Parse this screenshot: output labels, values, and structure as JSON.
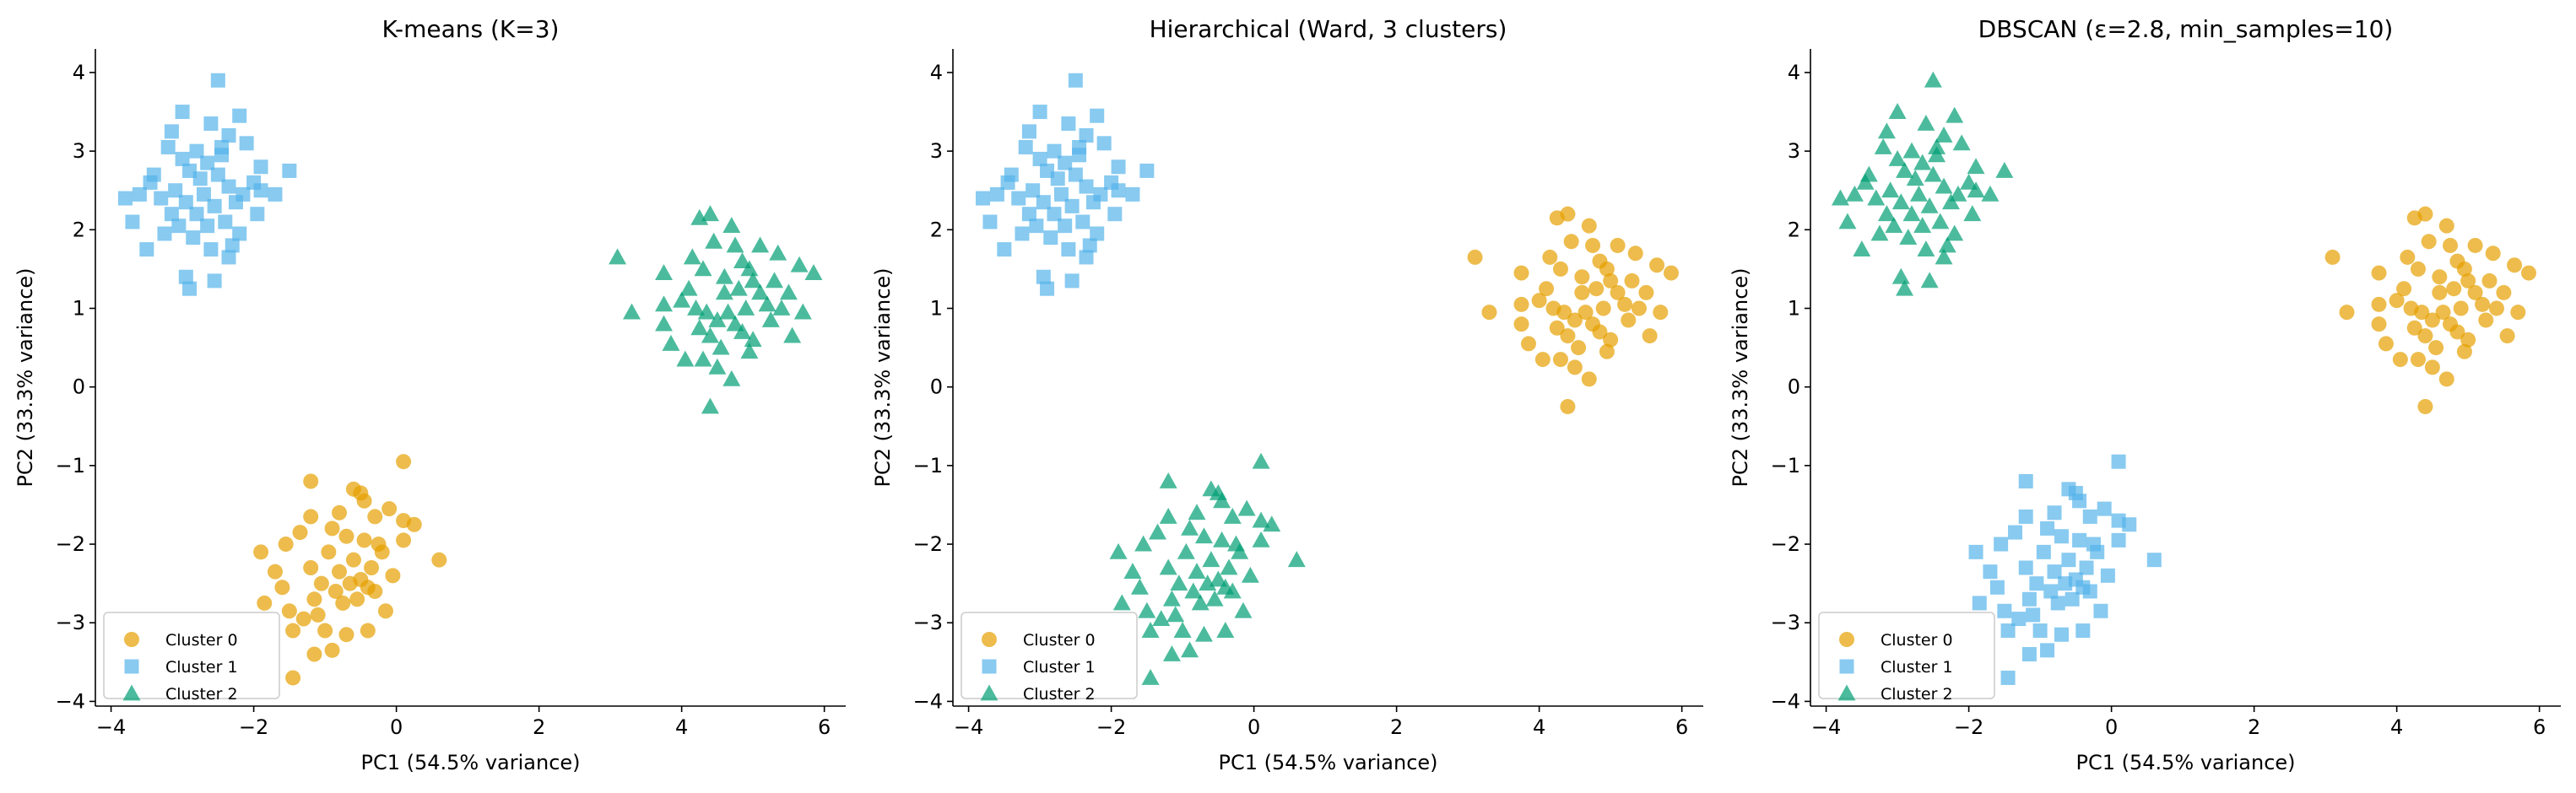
{
  "colors": {
    "cluster_0": "#E69F00",
    "cluster_1": "#56B4E9",
    "cluster_2": "#009E73"
  },
  "point_groups": {
    "A": [
      [
        -2.5,
        3.9
      ],
      [
        -1.5,
        2.75
      ],
      [
        -1.7,
        2.45
      ],
      [
        -3.8,
        2.4
      ],
      [
        -3.7,
        2.1
      ],
      [
        -3.5,
        1.75
      ],
      [
        -2.9,
        1.25
      ],
      [
        -2.55,
        1.35
      ],
      [
        -2.95,
        1.4
      ],
      [
        -3.0,
        3.5
      ],
      [
        -2.6,
        3.35
      ],
      [
        -2.2,
        3.45
      ],
      [
        -3.15,
        3.25
      ],
      [
        -2.35,
        3.2
      ],
      [
        -3.4,
        2.7
      ],
      [
        -3.2,
        3.05
      ],
      [
        -2.8,
        3.0
      ],
      [
        -2.65,
        2.85
      ],
      [
        -2.45,
        3.05
      ],
      [
        -2.1,
        3.1
      ],
      [
        -1.9,
        2.8
      ],
      [
        -3.3,
        2.4
      ],
      [
        -3.1,
        2.5
      ],
      [
        -2.95,
        2.35
      ],
      [
        -2.8,
        2.2
      ],
      [
        -2.7,
        2.45
      ],
      [
        -2.55,
        2.3
      ],
      [
        -2.4,
        2.1
      ],
      [
        -2.25,
        2.35
      ],
      [
        -2.15,
        2.45
      ],
      [
        -1.9,
        2.5
      ],
      [
        -1.95,
        2.2
      ],
      [
        -2.0,
        2.6
      ],
      [
        -3.05,
        2.05
      ],
      [
        -3.25,
        1.95
      ],
      [
        -2.85,
        1.9
      ],
      [
        -2.6,
        1.75
      ],
      [
        -2.3,
        1.8
      ],
      [
        -2.35,
        1.65
      ],
      [
        -3.45,
        2.6
      ],
      [
        -3.6,
        2.45
      ],
      [
        -2.75,
        2.65
      ],
      [
        -2.5,
        2.7
      ],
      [
        -2.9,
        2.75
      ],
      [
        -3.0,
        2.9
      ],
      [
        -2.35,
        2.55
      ],
      [
        -2.65,
        2.05
      ],
      [
        -2.2,
        1.95
      ],
      [
        -3.15,
        2.2
      ],
      [
        -2.45,
        2.95
      ]
    ],
    "B": [
      [
        3.1,
        1.65
      ],
      [
        3.3,
        0.95
      ],
      [
        4.4,
        -0.25
      ],
      [
        5.85,
        1.45
      ],
      [
        5.65,
        1.55
      ],
      [
        4.4,
        2.2
      ],
      [
        4.25,
        2.15
      ],
      [
        3.75,
        1.45
      ],
      [
        3.75,
        1.05
      ],
      [
        3.75,
        0.8
      ],
      [
        3.85,
        0.55
      ],
      [
        4.05,
        0.35
      ],
      [
        4.3,
        0.35
      ],
      [
        4.5,
        0.25
      ],
      [
        4.7,
        0.1
      ],
      [
        4.95,
        0.45
      ],
      [
        5.0,
        0.6
      ],
      [
        5.55,
        0.65
      ],
      [
        5.7,
        0.95
      ],
      [
        5.5,
        1.2
      ],
      [
        5.3,
        1.35
      ],
      [
        5.35,
        1.7
      ],
      [
        5.1,
        1.8
      ],
      [
        4.95,
        1.5
      ],
      [
        4.7,
        2.05
      ],
      [
        4.75,
        1.8
      ],
      [
        4.45,
        1.85
      ],
      [
        4.15,
        1.65
      ],
      [
        4.3,
        1.5
      ],
      [
        4.1,
        1.25
      ],
      [
        4.2,
        1.0
      ],
      [
        4.0,
        1.1
      ],
      [
        4.35,
        0.95
      ],
      [
        4.5,
        0.85
      ],
      [
        4.6,
        1.2
      ],
      [
        4.8,
        1.25
      ],
      [
        4.65,
        0.95
      ],
      [
        4.9,
        1.0
      ],
      [
        4.85,
        0.7
      ],
      [
        5.1,
        1.2
      ],
      [
        5.2,
        1.05
      ],
      [
        5.25,
        0.85
      ],
      [
        4.4,
        0.65
      ],
      [
        4.55,
        0.5
      ],
      [
        4.75,
        0.8
      ],
      [
        4.6,
        1.4
      ],
      [
        5.0,
        1.35
      ],
      [
        4.25,
        0.75
      ],
      [
        5.4,
        1.0
      ],
      [
        4.85,
        1.6
      ]
    ],
    "C": [
      [
        0.1,
        -0.95
      ],
      [
        0.6,
        -2.2
      ],
      [
        -1.2,
        -1.2
      ],
      [
        -1.45,
        -3.7
      ],
      [
        -1.9,
        -2.1
      ],
      [
        -1.85,
        -2.75
      ],
      [
        -1.15,
        -3.4
      ],
      [
        -0.9,
        -3.35
      ],
      [
        -0.6,
        -1.3
      ],
      [
        -0.5,
        -1.35
      ],
      [
        -0.45,
        -1.45
      ],
      [
        -0.1,
        -1.55
      ],
      [
        0.25,
        -1.75
      ],
      [
        0.1,
        -1.7
      ],
      [
        0.1,
        -1.95
      ],
      [
        -0.3,
        -1.65
      ],
      [
        -0.8,
        -1.6
      ],
      [
        -1.2,
        -1.65
      ],
      [
        -1.35,
        -1.85
      ],
      [
        -1.55,
        -2.0
      ],
      [
        -1.7,
        -2.35
      ],
      [
        -1.6,
        -2.55
      ],
      [
        -1.5,
        -2.85
      ],
      [
        -1.45,
        -3.1
      ],
      [
        -1.3,
        -2.95
      ],
      [
        -1.1,
        -2.9
      ],
      [
        -1.0,
        -3.1
      ],
      [
        -0.7,
        -3.15
      ],
      [
        -0.4,
        -3.1
      ],
      [
        -0.15,
        -2.85
      ],
      [
        -0.05,
        -2.4
      ],
      [
        -0.2,
        -2.1
      ],
      [
        -0.35,
        -2.3
      ],
      [
        -0.5,
        -2.45
      ],
      [
        -0.65,
        -2.5
      ],
      [
        -0.8,
        -2.35
      ],
      [
        -0.95,
        -2.1
      ],
      [
        -1.05,
        -2.5
      ],
      [
        -1.2,
        -2.3
      ],
      [
        -0.75,
        -2.75
      ],
      [
        -0.55,
        -2.7
      ],
      [
        -0.3,
        -2.6
      ],
      [
        -0.45,
        -1.95
      ],
      [
        -0.7,
        -1.9
      ],
      [
        -0.9,
        -1.8
      ],
      [
        -1.15,
        -2.7
      ],
      [
        -0.6,
        -2.2
      ],
      [
        -0.4,
        -2.55
      ],
      [
        -0.85,
        -2.6
      ],
      [
        -0.25,
        -2.0
      ]
    ]
  },
  "chart_data": [
    {
      "type": "scatter",
      "title": "K-means (K=3)",
      "xlabel": "PC1 (54.5% variance)",
      "ylabel": "PC2 (33.3% variance)",
      "xlim": [
        -4.22,
        6.3
      ],
      "ylim": [
        -4.06,
        4.3
      ],
      "xticks": [
        -4,
        -2,
        0,
        2,
        4,
        6
      ],
      "xtick_labels": [
        "−4",
        "−2",
        "0",
        "2",
        "4",
        "6"
      ],
      "yticks": [
        -4,
        -3,
        -2,
        -1,
        0,
        1,
        2,
        3,
        4
      ],
      "ytick_labels": [
        "−4",
        "−3",
        "−2",
        "−1",
        "0",
        "1",
        "2",
        "3",
        "4"
      ],
      "grid": false,
      "legend": "lower-left",
      "series": [
        {
          "name": "Cluster 0",
          "marker": "circle",
          "group": "C"
        },
        {
          "name": "Cluster 1",
          "marker": "square",
          "group": "A"
        },
        {
          "name": "Cluster 2",
          "marker": "triangle",
          "group": "B"
        }
      ]
    },
    {
      "type": "scatter",
      "title": "Hierarchical (Ward, 3 clusters)",
      "xlabel": "PC1 (54.5% variance)",
      "ylabel": "PC2 (33.3% variance)",
      "xlim": [
        -4.22,
        6.3
      ],
      "ylim": [
        -4.06,
        4.3
      ],
      "xticks": [
        -4,
        -2,
        0,
        2,
        4,
        6
      ],
      "xtick_labels": [
        "−4",
        "−2",
        "0",
        "2",
        "4",
        "6"
      ],
      "yticks": [
        -4,
        -3,
        -2,
        -1,
        0,
        1,
        2,
        3,
        4
      ],
      "ytick_labels": [
        "−4",
        "−3",
        "−2",
        "−1",
        "0",
        "1",
        "2",
        "3",
        "4"
      ],
      "grid": false,
      "legend": "lower-left",
      "series": [
        {
          "name": "Cluster 0",
          "marker": "circle",
          "group": "B"
        },
        {
          "name": "Cluster 1",
          "marker": "square",
          "group": "A"
        },
        {
          "name": "Cluster 2",
          "marker": "triangle",
          "group": "C"
        }
      ]
    },
    {
      "type": "scatter",
      "title": "DBSCAN (ε=2.8, min_samples=10)",
      "xlabel": "PC1 (54.5% variance)",
      "ylabel": "PC2 (33.3% variance)",
      "xlim": [
        -4.22,
        6.3
      ],
      "ylim": [
        -4.06,
        4.3
      ],
      "xticks": [
        -4,
        -2,
        0,
        2,
        4,
        6
      ],
      "xtick_labels": [
        "−4",
        "−2",
        "0",
        "2",
        "4",
        "6"
      ],
      "yticks": [
        -4,
        -3,
        -2,
        -1,
        0,
        1,
        2,
        3,
        4
      ],
      "ytick_labels": [
        "−4",
        "−3",
        "−2",
        "−1",
        "0",
        "1",
        "2",
        "3",
        "4"
      ],
      "grid": false,
      "legend": "lower-left",
      "series": [
        {
          "name": "Cluster 0",
          "marker": "circle",
          "group": "B"
        },
        {
          "name": "Cluster 1",
          "marker": "square",
          "group": "C"
        },
        {
          "name": "Cluster 2",
          "marker": "triangle",
          "group": "A"
        }
      ]
    }
  ]
}
